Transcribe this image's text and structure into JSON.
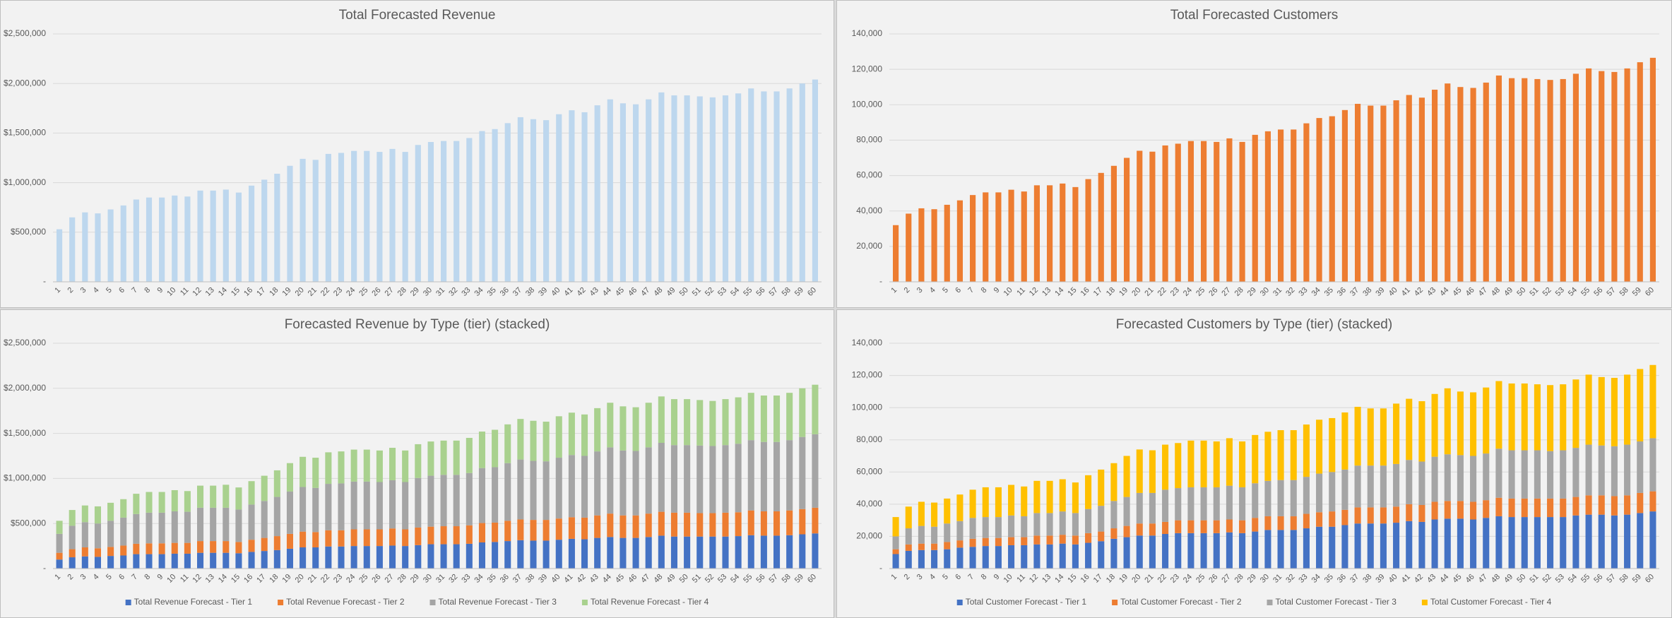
{
  "chart_data": [
    {
      "type": "bar",
      "title": "Total Forecasted Revenue",
      "categories": [
        "1",
        "2",
        "3",
        "4",
        "5",
        "6",
        "7",
        "8",
        "9",
        "10",
        "11",
        "12",
        "13",
        "14",
        "15",
        "16",
        "17",
        "18",
        "19",
        "20",
        "21",
        "22",
        "23",
        "24",
        "25",
        "26",
        "27",
        "28",
        "29",
        "30",
        "31",
        "32",
        "33",
        "34",
        "35",
        "36",
        "37",
        "38",
        "39",
        "40",
        "41",
        "42",
        "43",
        "44",
        "45",
        "46",
        "47",
        "48",
        "49",
        "50",
        "51",
        "52",
        "53",
        "54",
        "55",
        "56",
        "57",
        "58",
        "59",
        "60"
      ],
      "values": [
        530000,
        650000,
        700000,
        690000,
        730000,
        770000,
        830000,
        850000,
        850000,
        870000,
        860000,
        920000,
        920000,
        930000,
        900000,
        970000,
        1030000,
        1090000,
        1170000,
        1240000,
        1230000,
        1290000,
        1300000,
        1320000,
        1320000,
        1310000,
        1340000,
        1310000,
        1380000,
        1410000,
        1420000,
        1420000,
        1450000,
        1520000,
        1540000,
        1600000,
        1660000,
        1640000,
        1630000,
        1690000,
        1730000,
        1710000,
        1780000,
        1840000,
        1800000,
        1790000,
        1840000,
        1910000,
        1880000,
        1880000,
        1870000,
        1860000,
        1880000,
        1900000,
        1950000,
        1920000,
        1920000,
        1950000,
        2000000,
        2040000
      ],
      "color": "#bdd7ee",
      "ylim": [
        0,
        2500000
      ],
      "yticks": [
        {
          "value": 0,
          "label": "-"
        },
        {
          "value": 500000,
          "label": "$500,000"
        },
        {
          "value": 1000000,
          "label": "$1,000,000"
        },
        {
          "value": 1500000,
          "label": "$1,500,000"
        },
        {
          "value": 2000000,
          "label": "$2,000,000"
        },
        {
          "value": 2500000,
          "label": "$2,500,000"
        }
      ],
      "grid": true
    },
    {
      "type": "bar",
      "title": "Total Forecasted Customers",
      "categories": [
        "1",
        "2",
        "3",
        "4",
        "5",
        "6",
        "7",
        "8",
        "9",
        "10",
        "11",
        "12",
        "13",
        "14",
        "15",
        "16",
        "17",
        "18",
        "19",
        "20",
        "21",
        "22",
        "23",
        "24",
        "25",
        "26",
        "27",
        "28",
        "29",
        "30",
        "31",
        "32",
        "33",
        "34",
        "35",
        "36",
        "37",
        "38",
        "39",
        "40",
        "41",
        "42",
        "43",
        "44",
        "45",
        "46",
        "47",
        "48",
        "49",
        "50",
        "51",
        "52",
        "53",
        "54",
        "55",
        "56",
        "57",
        "58",
        "59",
        "60"
      ],
      "values": [
        32000,
        38500,
        41500,
        41000,
        43500,
        46000,
        49000,
        50500,
        50500,
        52000,
        51000,
        54500,
        54500,
        55500,
        53500,
        58000,
        61500,
        65500,
        70000,
        74000,
        73500,
        77000,
        78000,
        79500,
        79500,
        79000,
        81000,
        79000,
        83000,
        85000,
        86000,
        86000,
        89500,
        92500,
        93500,
        97000,
        100500,
        99500,
        99500,
        102500,
        105500,
        104000,
        108500,
        112000,
        110000,
        109500,
        112500,
        116500,
        115000,
        115000,
        114500,
        114000,
        114500,
        117500,
        120500,
        119000,
        118500,
        120500,
        124000,
        126500
      ],
      "color": "#ed7d31",
      "ylim": [
        0,
        140000
      ],
      "yticks": [
        {
          "value": 0,
          "label": "-"
        },
        {
          "value": 20000,
          "label": "20,000"
        },
        {
          "value": 40000,
          "label": "40,000"
        },
        {
          "value": 60000,
          "label": "60,000"
        },
        {
          "value": 80000,
          "label": "80,000"
        },
        {
          "value": 100000,
          "label": "100,000"
        },
        {
          "value": 120000,
          "label": "120,000"
        },
        {
          "value": 140000,
          "label": "140,000"
        }
      ],
      "grid": true
    },
    {
      "type": "stacked_bar",
      "title": "Forecasted Revenue by Type (tier) (stacked)",
      "categories": [
        "1",
        "2",
        "3",
        "4",
        "5",
        "6",
        "7",
        "8",
        "9",
        "10",
        "11",
        "12",
        "13",
        "14",
        "15",
        "16",
        "17",
        "18",
        "19",
        "20",
        "21",
        "22",
        "23",
        "24",
        "25",
        "26",
        "27",
        "28",
        "29",
        "30",
        "31",
        "32",
        "33",
        "34",
        "35",
        "36",
        "37",
        "38",
        "39",
        "40",
        "41",
        "42",
        "43",
        "44",
        "45",
        "46",
        "47",
        "48",
        "49",
        "50",
        "51",
        "52",
        "53",
        "54",
        "55",
        "56",
        "57",
        "58",
        "59",
        "60"
      ],
      "series": [
        {
          "name": "Total Revenue Forecast - Tier 1",
          "color": "#4472c4",
          "values": [
            100000,
            125000,
            135000,
            130000,
            140000,
            145000,
            160000,
            160000,
            160000,
            165000,
            165000,
            175000,
            175000,
            175000,
            170000,
            185000,
            195000,
            205000,
            220000,
            235000,
            235000,
            245000,
            245000,
            250000,
            250000,
            250000,
            255000,
            250000,
            260000,
            270000,
            270000,
            270000,
            275000,
            290000,
            295000,
            305000,
            315000,
            310000,
            310000,
            320000,
            330000,
            325000,
            340000,
            350000,
            340000,
            340000,
            350000,
            365000,
            355000,
            355000,
            355000,
            355000,
            355000,
            360000,
            370000,
            365000,
            365000,
            370000,
            380000,
            390000
          ]
        },
        {
          "name": "Total Revenue Forecast - Tier 2",
          "color": "#ed7d31",
          "values": [
            75000,
            90000,
            100000,
            95000,
            100000,
            110000,
            115000,
            120000,
            120000,
            120000,
            120000,
            130000,
            130000,
            130000,
            125000,
            135000,
            145000,
            155000,
            165000,
            175000,
            170000,
            180000,
            180000,
            185000,
            185000,
            185000,
            190000,
            185000,
            195000,
            195000,
            200000,
            200000,
            205000,
            215000,
            215000,
            225000,
            230000,
            230000,
            230000,
            235000,
            240000,
            240000,
            250000,
            260000,
            250000,
            250000,
            260000,
            265000,
            265000,
            265000,
            260000,
            260000,
            265000,
            265000,
            275000,
            270000,
            270000,
            275000,
            280000,
            285000
          ]
        },
        {
          "name": "Total Revenue Forecast - Tier 3",
          "color": "#a5a5a5",
          "values": [
            210000,
            260000,
            280000,
            275000,
            290000,
            310000,
            330000,
            340000,
            340000,
            350000,
            345000,
            370000,
            370000,
            370000,
            360000,
            390000,
            410000,
            435000,
            470000,
            495000,
            490000,
            515000,
            520000,
            530000,
            530000,
            525000,
            535000,
            525000,
            550000,
            565000,
            570000,
            570000,
            580000,
            610000,
            615000,
            640000,
            665000,
            655000,
            650000,
            675000,
            690000,
            685000,
            710000,
            735000,
            720000,
            715000,
            735000,
            765000,
            750000,
            750000,
            750000,
            745000,
            750000,
            760000,
            780000,
            770000,
            770000,
            780000,
            800000,
            815000
          ]
        },
        {
          "name": "Total Revenue Forecast - Tier 4",
          "color": "#a9d18e",
          "values": [
            145000,
            175000,
            185000,
            190000,
            200000,
            205000,
            225000,
            230000,
            230000,
            235000,
            230000,
            245000,
            245000,
            255000,
            245000,
            260000,
            280000,
            295000,
            315000,
            335000,
            335000,
            350000,
            355000,
            355000,
            355000,
            350000,
            360000,
            350000,
            375000,
            380000,
            380000,
            380000,
            390000,
            405000,
            415000,
            430000,
            450000,
            445000,
            440000,
            460000,
            470000,
            460000,
            480000,
            495000,
            490000,
            485000,
            495000,
            515000,
            510000,
            510000,
            505000,
            500000,
            510000,
            515000,
            525000,
            515000,
            515000,
            525000,
            540000,
            550000
          ]
        }
      ],
      "ylim": [
        0,
        2500000
      ],
      "yticks": [
        {
          "value": 0,
          "label": "-"
        },
        {
          "value": 500000,
          "label": "$500,000"
        },
        {
          "value": 1000000,
          "label": "$1,000,000"
        },
        {
          "value": 1500000,
          "label": "$1,500,000"
        },
        {
          "value": 2000000,
          "label": "$2,000,000"
        },
        {
          "value": 2500000,
          "label": "$2,500,000"
        }
      ],
      "grid": true,
      "legend": "bottom"
    },
    {
      "type": "stacked_bar",
      "title": "Forecasted Customers by Type (tier) (stacked)",
      "categories": [
        "1",
        "2",
        "3",
        "4",
        "5",
        "6",
        "7",
        "8",
        "9",
        "10",
        "11",
        "12",
        "13",
        "14",
        "15",
        "16",
        "17",
        "18",
        "19",
        "20",
        "21",
        "22",
        "23",
        "24",
        "25",
        "26",
        "27",
        "28",
        "29",
        "30",
        "31",
        "32",
        "33",
        "34",
        "35",
        "36",
        "37",
        "38",
        "39",
        "40",
        "41",
        "42",
        "43",
        "44",
        "45",
        "46",
        "47",
        "48",
        "49",
        "50",
        "51",
        "52",
        "53",
        "54",
        "55",
        "56",
        "57",
        "58",
        "59",
        "60"
      ],
      "series": [
        {
          "name": "Total Customer Forecast - Tier 1",
          "color": "#4472c4",
          "values": [
            9000,
            11000,
            11500,
            11500,
            12000,
            13000,
            13500,
            14000,
            14000,
            14500,
            14500,
            15000,
            15000,
            15500,
            15000,
            16000,
            17000,
            18500,
            19500,
            20500,
            20500,
            21500,
            22000,
            22000,
            22000,
            22000,
            22500,
            22000,
            23000,
            24000,
            24000,
            24000,
            25000,
            26000,
            26000,
            27000,
            28000,
            28000,
            28000,
            28500,
            29500,
            29000,
            30500,
            31000,
            31000,
            30500,
            31500,
            32500,
            32000,
            32000,
            32000,
            32000,
            32000,
            33000,
            33500,
            33500,
            33000,
            33500,
            34500,
            35500
          ]
        },
        {
          "name": "Total Customer Forecast - Tier 2",
          "color": "#ed7d31",
          "values": [
            3000,
            4000,
            4000,
            4000,
            4500,
            4500,
            5000,
            5000,
            5000,
            5000,
            5000,
            5500,
            5500,
            5500,
            5500,
            6000,
            6000,
            6500,
            7000,
            7500,
            7500,
            7500,
            8000,
            8000,
            8000,
            8000,
            8000,
            8000,
            8500,
            8500,
            8500,
            8500,
            9000,
            9000,
            9500,
            9500,
            10000,
            10000,
            10000,
            10000,
            10500,
            10500,
            11000,
            11000,
            11000,
            11000,
            11000,
            11500,
            11500,
            11500,
            11500,
            11500,
            11500,
            11500,
            12000,
            12000,
            12000,
            12000,
            12500,
            12500
          ]
        },
        {
          "name": "Total Customer Forecast - Tier 3",
          "color": "#a5a5a5",
          "values": [
            8000,
            10000,
            11000,
            10500,
            11500,
            12000,
            13000,
            13000,
            13000,
            13500,
            13000,
            14000,
            14000,
            14500,
            14000,
            15000,
            16000,
            17000,
            18000,
            19000,
            19000,
            20000,
            20000,
            20500,
            20500,
            20500,
            21000,
            20500,
            21500,
            22000,
            22500,
            22500,
            23000,
            24000,
            24500,
            25000,
            26000,
            26000,
            26000,
            26500,
            27500,
            27000,
            28000,
            29000,
            28500,
            28500,
            29000,
            30500,
            30000,
            30000,
            30000,
            29500,
            30000,
            30500,
            31500,
            31000,
            31000,
            31500,
            32000,
            33000
          ]
        },
        {
          "name": "Total Customer Forecast - Tier 4",
          "color": "#ffc000",
          "values": [
            12000,
            13500,
            15000,
            15000,
            15500,
            16500,
            17500,
            18500,
            18500,
            19000,
            18500,
            20000,
            20000,
            20000,
            19000,
            21000,
            22500,
            23500,
            25500,
            27000,
            26500,
            28000,
            28000,
            29000,
            29000,
            28500,
            29500,
            28500,
            30000,
            30500,
            31000,
            31000,
            32500,
            33500,
            33500,
            35500,
            36500,
            35500,
            35500,
            37500,
            38000,
            37500,
            39000,
            41000,
            39500,
            39500,
            41000,
            42000,
            41500,
            41500,
            41000,
            41000,
            41000,
            42500,
            43500,
            42500,
            42500,
            43500,
            45000,
            45500
          ]
        }
      ],
      "ylim": [
        0,
        140000
      ],
      "yticks": [
        {
          "value": 0,
          "label": "-"
        },
        {
          "value": 20000,
          "label": "20,000"
        },
        {
          "value": 40000,
          "label": "40,000"
        },
        {
          "value": 60000,
          "label": "60,000"
        },
        {
          "value": 80000,
          "label": "80,000"
        },
        {
          "value": 100000,
          "label": "100,000"
        },
        {
          "value": 120000,
          "label": "120,000"
        },
        {
          "value": 140000,
          "label": "140,000"
        }
      ],
      "grid": true,
      "legend": "bottom"
    }
  ]
}
